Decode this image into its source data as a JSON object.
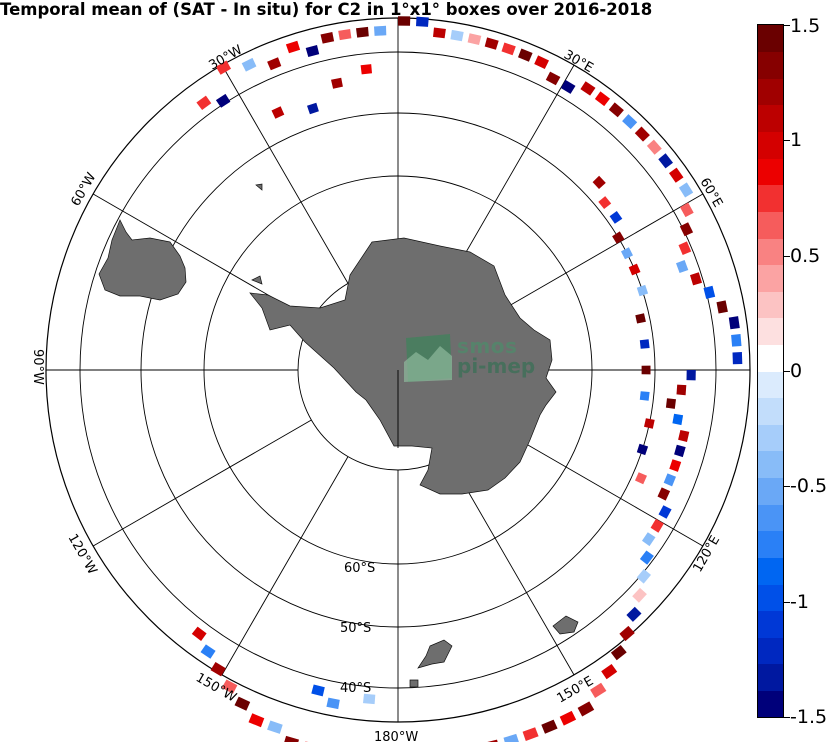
{
  "title": "Temporal mean of (SAT - In situ) for C2 in 1°x1° boxes over 2016-2018",
  "logo": {
    "line1": "smos",
    "line2": "pi-mep"
  },
  "colors": {
    "land": "#6e6e6e",
    "neutral": "#ffffff",
    "colormap": [
      "#00007a",
      "#0018a0",
      "#0028c0",
      "#0038d6",
      "#0050e8",
      "#0066f2",
      "#2a80f6",
      "#4a94f6",
      "#6aa8f6",
      "#88bcf8",
      "#a6cdfa",
      "#c2ddfb",
      "#dbebfd",
      "#ffffff",
      "#fde0e0",
      "#fcc3c3",
      "#fba3a3",
      "#f98282",
      "#f65c5c",
      "#f23030",
      "#ec0000",
      "#d40000",
      "#bc0000",
      "#a00000",
      "#860000",
      "#6a0000"
    ]
  },
  "chart_data": {
    "type": "heatmap",
    "projection": "south-polar-stereographic",
    "title": "Temporal mean of (SAT - In situ) for C2 in 1°x1° boxes over 2016-2018",
    "lon_labels": [
      "30°W",
      "30°E",
      "60°W",
      "60°E",
      "90°W",
      "120°W",
      "120°E",
      "150°W",
      "150°E",
      "180°W"
    ],
    "lat_labels": [
      "60°S",
      "50°S",
      "40°S"
    ],
    "graticule": {
      "longitude_step_deg": 30,
      "latitude_circles_deg": [
        -80,
        -70,
        -60,
        -50,
        -40
      ]
    },
    "colorbar": {
      "vmin": -1.5,
      "vmax": 1.5,
      "tick_labels": [
        "1.5",
        "1",
        "0.5",
        "0",
        "-0.5",
        "-1",
        "-1.5"
      ],
      "tick_values": [
        1.5,
        1,
        0.5,
        0,
        -0.5,
        -1,
        -1.5
      ]
    },
    "cells": [
      {
        "lon": -30,
        "lat": -50,
        "v": 0.8
      },
      {
        "lon": -26,
        "lat": -51,
        "v": -0.4
      },
      {
        "lon": -22,
        "lat": -52,
        "v": 1.2
      },
      {
        "lon": -18,
        "lat": -51,
        "v": 0.9
      },
      {
        "lon": -15,
        "lat": -52,
        "v": -1.4
      },
      {
        "lon": -12,
        "lat": -51,
        "v": 1.3
      },
      {
        "lon": -9,
        "lat": -51,
        "v": 0.6
      },
      {
        "lon": -6,
        "lat": -51,
        "v": 1.4
      },
      {
        "lon": -3,
        "lat": -51,
        "v": -0.5
      },
      {
        "lon": 1,
        "lat": -50,
        "v": 1.5
      },
      {
        "lon": 4,
        "lat": -50,
        "v": -1.2
      },
      {
        "lon": 7,
        "lat": -51,
        "v": 1.1
      },
      {
        "lon": 10,
        "lat": -51,
        "v": -0.3
      },
      {
        "lon": 13,
        "lat": -51,
        "v": 0.4
      },
      {
        "lon": 16,
        "lat": -51,
        "v": 1.2
      },
      {
        "lon": 19,
        "lat": -51,
        "v": 0.7
      },
      {
        "lon": 22,
        "lat": -51,
        "v": 1.4
      },
      {
        "lon": 25,
        "lat": -51,
        "v": 1.0
      },
      {
        "lon": 28,
        "lat": -52,
        "v": 1.3
      },
      {
        "lon": 31,
        "lat": -52,
        "v": -1.5
      },
      {
        "lon": 34,
        "lat": -51,
        "v": 1.1
      },
      {
        "lon": 37,
        "lat": -51,
        "v": 0.9
      },
      {
        "lon": 40,
        "lat": -51,
        "v": 1.3
      },
      {
        "lon": 43,
        "lat": -51,
        "v": -0.6
      },
      {
        "lon": 46,
        "lat": -51,
        "v": 1.2
      },
      {
        "lon": 49,
        "lat": -51,
        "v": 0.5
      },
      {
        "lon": 52,
        "lat": -51,
        "v": -1.3
      },
      {
        "lon": 55,
        "lat": -51,
        "v": 1.0
      },
      {
        "lon": 58,
        "lat": -51,
        "v": -0.4
      },
      {
        "lon": 61,
        "lat": -52,
        "v": 0.6
      },
      {
        "lon": 64,
        "lat": -53,
        "v": 1.3
      },
      {
        "lon": 67,
        "lat": -54,
        "v": 0.8
      },
      {
        "lon": 70,
        "lat": -55,
        "v": -0.5
      },
      {
        "lon": 73,
        "lat": -54,
        "v": 1.1
      },
      {
        "lon": 76,
        "lat": -53,
        "v": -1.0
      },
      {
        "lon": 79,
        "lat": -52,
        "v": 1.4
      },
      {
        "lon": 82,
        "lat": -51,
        "v": -1.4
      },
      {
        "lon": 85,
        "lat": -51,
        "v": -0.7
      },
      {
        "lon": 88,
        "lat": -51,
        "v": -1.2
      },
      {
        "lon": 91,
        "lat": -56,
        "v": -1.3
      },
      {
        "lon": 94,
        "lat": -57,
        "v": 1.2
      },
      {
        "lon": 97,
        "lat": -58,
        "v": 1.5
      },
      {
        "lon": 100,
        "lat": -57,
        "v": -0.9
      },
      {
        "lon": 103,
        "lat": -56,
        "v": 1.1
      },
      {
        "lon": 106,
        "lat": -56,
        "v": -1.5
      },
      {
        "lon": 109,
        "lat": -56,
        "v": 0.9
      },
      {
        "lon": 112,
        "lat": -56,
        "v": -0.6
      },
      {
        "lon": 115,
        "lat": -56,
        "v": 1.3
      },
      {
        "lon": 118,
        "lat": -55,
        "v": -1.1
      },
      {
        "lon": 121,
        "lat": -55,
        "v": 0.7
      },
      {
        "lon": 124,
        "lat": -55,
        "v": -0.4
      },
      {
        "lon": 127,
        "lat": -54,
        "v": -0.8
      },
      {
        "lon": 130,
        "lat": -53,
        "v": -0.3
      },
      {
        "lon": 133,
        "lat": -52,
        "v": 0.3
      },
      {
        "lon": 136,
        "lat": -51,
        "v": -1.3
      },
      {
        "lon": 139,
        "lat": -50,
        "v": 1.2
      },
      {
        "lon": 142,
        "lat": -49,
        "v": 1.5
      },
      {
        "lon": 145,
        "lat": -48,
        "v": 1.0
      },
      {
        "lon": 148,
        "lat": -47,
        "v": 0.6
      },
      {
        "lon": 151,
        "lat": -46,
        "v": 1.3
      },
      {
        "lon": 154,
        "lat": -46,
        "v": 0.9
      },
      {
        "lon": 157,
        "lat": -46,
        "v": 1.4
      },
      {
        "lon": 160,
        "lat": -46,
        "v": 0.8
      },
      {
        "lon": 163,
        "lat": -46,
        "v": -0.5
      },
      {
        "lon": 166,
        "lat": -46,
        "v": 1.2
      },
      {
        "lon": 169,
        "lat": -45,
        "v": 1.1
      },
      {
        "lon": 172,
        "lat": -45,
        "v": 0.4
      },
      {
        "lon": 175,
        "lat": -45,
        "v": 1.3
      },
      {
        "lon": 178,
        "lat": -45,
        "v": 1.0
      },
      {
        "lon": -179,
        "lat": -45,
        "v": 1.4
      },
      {
        "lon": -176,
        "lat": -45,
        "v": 0.7
      },
      {
        "lon": -173,
        "lat": -46,
        "v": -0.9
      },
      {
        "lon": -170,
        "lat": -46,
        "v": 1.2
      },
      {
        "lon": -167,
        "lat": -46,
        "v": 0.5
      },
      {
        "lon": -164,
        "lat": -46,
        "v": 1.3
      },
      {
        "lon": -161,
        "lat": -47,
        "v": -0.4
      },
      {
        "lon": -158,
        "lat": -47,
        "v": 0.9
      },
      {
        "lon": -155,
        "lat": -48,
        "v": 1.5
      },
      {
        "lon": -152,
        "lat": -49,
        "v": 0.6
      },
      {
        "lon": -149,
        "lat": -50,
        "v": 1.2
      },
      {
        "lon": -146,
        "lat": -51,
        "v": -0.7
      },
      {
        "lon": -143,
        "lat": -52,
        "v": 1.0
      },
      {
        "lon": -169,
        "lat": -51,
        "v": -0.6
      },
      {
        "lon": -166,
        "lat": -52,
        "v": -1.0
      },
      {
        "lon": -175,
        "lat": -52,
        "v": -0.3
      },
      {
        "lon": 47,
        "lat": -58,
        "v": 1.2
      },
      {
        "lon": 51,
        "lat": -59,
        "v": 0.8
      },
      {
        "lon": 55,
        "lat": -59,
        "v": -1.1
      },
      {
        "lon": 59,
        "lat": -60,
        "v": 1.3
      },
      {
        "lon": 63,
        "lat": -60,
        "v": -0.5
      },
      {
        "lon": 67,
        "lat": -60,
        "v": 1.0
      },
      {
        "lon": 72,
        "lat": -60,
        "v": -0.4
      },
      {
        "lon": 78,
        "lat": -61,
        "v": 1.4
      },
      {
        "lon": 84,
        "lat": -61,
        "v": -1.2
      },
      {
        "lon": 90,
        "lat": -61,
        "v": 1.5
      },
      {
        "lon": 96,
        "lat": -61,
        "v": -0.8
      },
      {
        "lon": 102,
        "lat": -60,
        "v": 1.1
      },
      {
        "lon": 108,
        "lat": -60,
        "v": -1.4
      },
      {
        "lon": 114,
        "lat": -59,
        "v": 0.6
      },
      {
        "lon": -25,
        "lat": -57,
        "v": 1.1
      },
      {
        "lon": -18,
        "lat": -58,
        "v": -1.3
      },
      {
        "lon": -12,
        "lat": -56,
        "v": 1.2
      },
      {
        "lon": -6,
        "lat": -55,
        "v": 0.9
      },
      {
        "lon": -33,
        "lat": -53,
        "v": -1.4
      },
      {
        "lon": -36,
        "lat": -52,
        "v": 0.7
      }
    ]
  }
}
